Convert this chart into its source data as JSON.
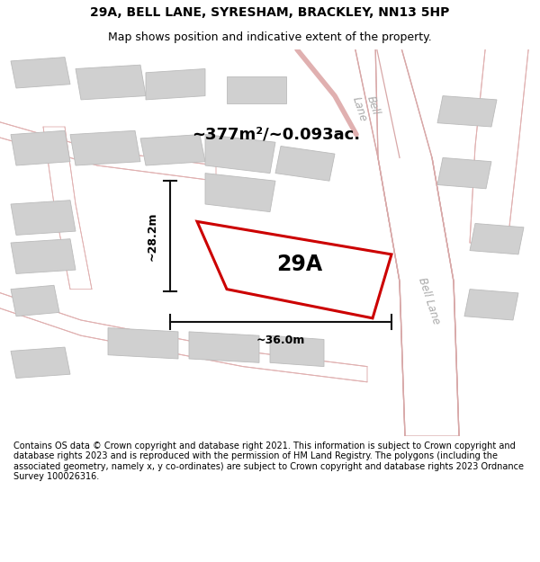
{
  "title": "29A, BELL LANE, SYRESHAM, BRACKLEY, NN13 5HP",
  "subtitle": "Map shows position and indicative extent of the property.",
  "footer": "Contains OS data © Crown copyright and database right 2021. This information is subject to Crown copyright and database rights 2023 and is reproduced with the permission of HM Land Registry. The polygons (including the associated geometry, namely x, y co-ordinates) are subject to Crown copyright and database rights 2023 Ordnance Survey 100026316.",
  "map_background": "#f2efef",
  "area_label": "~377m²/~0.093ac.",
  "property_label": "29A",
  "dim_width": "~36.0m",
  "dim_height": "~28.2m",
  "bell_lane_label1": "Bell\nLane",
  "bell_lane_label2": "Bell Lane",
  "road_fill": "#ffffff",
  "road_edge": "#e8b0b0",
  "building_color": "#d0d0d0",
  "building_edge": "#bbbbbb",
  "property_edge_color": "#cc0000",
  "dim_color": "#111111",
  "bell_lane_color": "#aaaaaa",
  "title_fontsize": 10,
  "subtitle_fontsize": 9,
  "footer_fontsize": 7
}
